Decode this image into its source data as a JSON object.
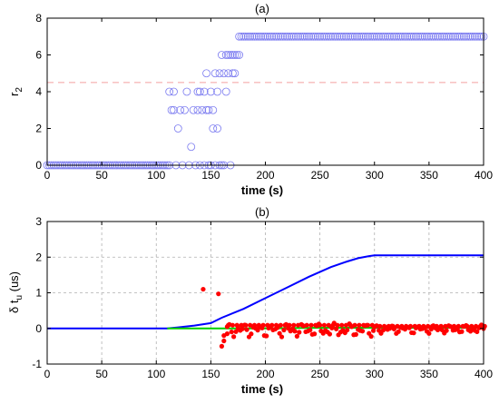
{
  "chart_data": [
    {
      "type": "scatter",
      "title": "(a)",
      "xlabel": "time (s)",
      "ylabel": "r",
      "ylabel_subscript": "2",
      "xlim": [
        0,
        400
      ],
      "ylim": [
        0,
        8
      ],
      "xticks": [
        0,
        50,
        100,
        150,
        200,
        250,
        300,
        350,
        400
      ],
      "yticks": [
        0,
        2,
        4,
        6,
        8
      ],
      "grid": false,
      "threshold": {
        "value": 4.5,
        "color": "#f4a0a0"
      },
      "marker_color": "#7b7bf0",
      "series": [
        {
          "marker": "open-circle",
          "segments": [
            {
              "from": 0,
              "to": 110,
              "step": 2,
              "value": 0
            },
            {
              "from": 178,
              "to": 400,
              "step": 2,
              "value": 7
            }
          ],
          "points": [
            [
              112,
              0
            ],
            [
              112,
              4
            ],
            [
              114,
              3
            ],
            [
              116,
              4
            ],
            [
              116,
              3
            ],
            [
              118,
              0
            ],
            [
              120,
              2
            ],
            [
              122,
              3
            ],
            [
              124,
              0
            ],
            [
              126,
              3
            ],
            [
              128,
              4
            ],
            [
              130,
              0
            ],
            [
              132,
              1
            ],
            [
              134,
              3
            ],
            [
              136,
              0
            ],
            [
              138,
              4
            ],
            [
              138,
              3
            ],
            [
              140,
              4
            ],
            [
              140,
              0
            ],
            [
              142,
              3
            ],
            [
              144,
              4
            ],
            [
              144,
              0
            ],
            [
              146,
              5
            ],
            [
              146,
              3
            ],
            [
              148,
              0
            ],
            [
              148,
              3
            ],
            [
              150,
              4
            ],
            [
              150,
              0
            ],
            [
              152,
              3
            ],
            [
              152,
              2
            ],
            [
              154,
              0
            ],
            [
              154,
              5
            ],
            [
              156,
              4
            ],
            [
              156,
              2
            ],
            [
              158,
              0
            ],
            [
              158,
              5
            ],
            [
              160,
              6
            ],
            [
              160,
              0
            ],
            [
              162,
              5
            ],
            [
              162,
              0
            ],
            [
              164,
              6
            ],
            [
              164,
              4
            ],
            [
              166,
              5
            ],
            [
              166,
              6
            ],
            [
              168,
              0
            ],
            [
              168,
              6
            ],
            [
              170,
              5
            ],
            [
              170,
              6
            ],
            [
              172,
              6
            ],
            [
              172,
              5
            ],
            [
              174,
              6
            ],
            [
              176,
              6
            ],
            [
              176,
              7
            ]
          ]
        }
      ]
    },
    {
      "type": "line",
      "title": "(b)",
      "xlabel": "time (s)",
      "ylabel": "δ t",
      "ylabel_subscript": "u",
      "ylabel_suffix": " (us)",
      "xlim": [
        0,
        400
      ],
      "ylim": [
        -1,
        3
      ],
      "xticks": [
        0,
        50,
        100,
        150,
        200,
        250,
        300,
        350,
        400
      ],
      "yticks": [
        -1,
        0,
        1,
        2,
        3
      ],
      "grid": true,
      "series": [
        {
          "color": "#0000ff",
          "style": "line",
          "x": [
            0,
            110,
            120,
            135,
            150,
            160,
            180,
            200,
            220,
            240,
            260,
            275,
            285,
            295,
            300,
            320,
            350,
            400
          ],
          "y": [
            0,
            0,
            0.03,
            0.08,
            0.15,
            0.3,
            0.55,
            0.85,
            1.15,
            1.45,
            1.72,
            1.88,
            1.97,
            2.03,
            2.05,
            2.05,
            2.05,
            2.05
          ]
        },
        {
          "color": "#00d000",
          "style": "line",
          "x": [
            110,
            160,
            200,
            250,
            300,
            350,
            400
          ],
          "y": [
            0,
            0,
            0,
            0.02,
            0.02,
            0.02,
            0.02
          ]
        },
        {
          "color": "#ff0000",
          "style": "dots",
          "isolated_points": [
            [
              143,
              1.1
            ],
            [
              157,
              0.97
            ],
            [
              160,
              -0.5
            ],
            [
              162,
              -0.35
            ],
            [
              162,
              -0.2
            ],
            [
              165,
              -0.15
            ]
          ],
          "bands": [
            {
              "from": 165,
              "to": 300,
              "step": 2,
              "low": -0.25,
              "high": 0.15
            },
            {
              "from": 300,
              "to": 400,
              "step": 2,
              "low": -0.15,
              "high": 0.1
            }
          ]
        }
      ]
    }
  ]
}
